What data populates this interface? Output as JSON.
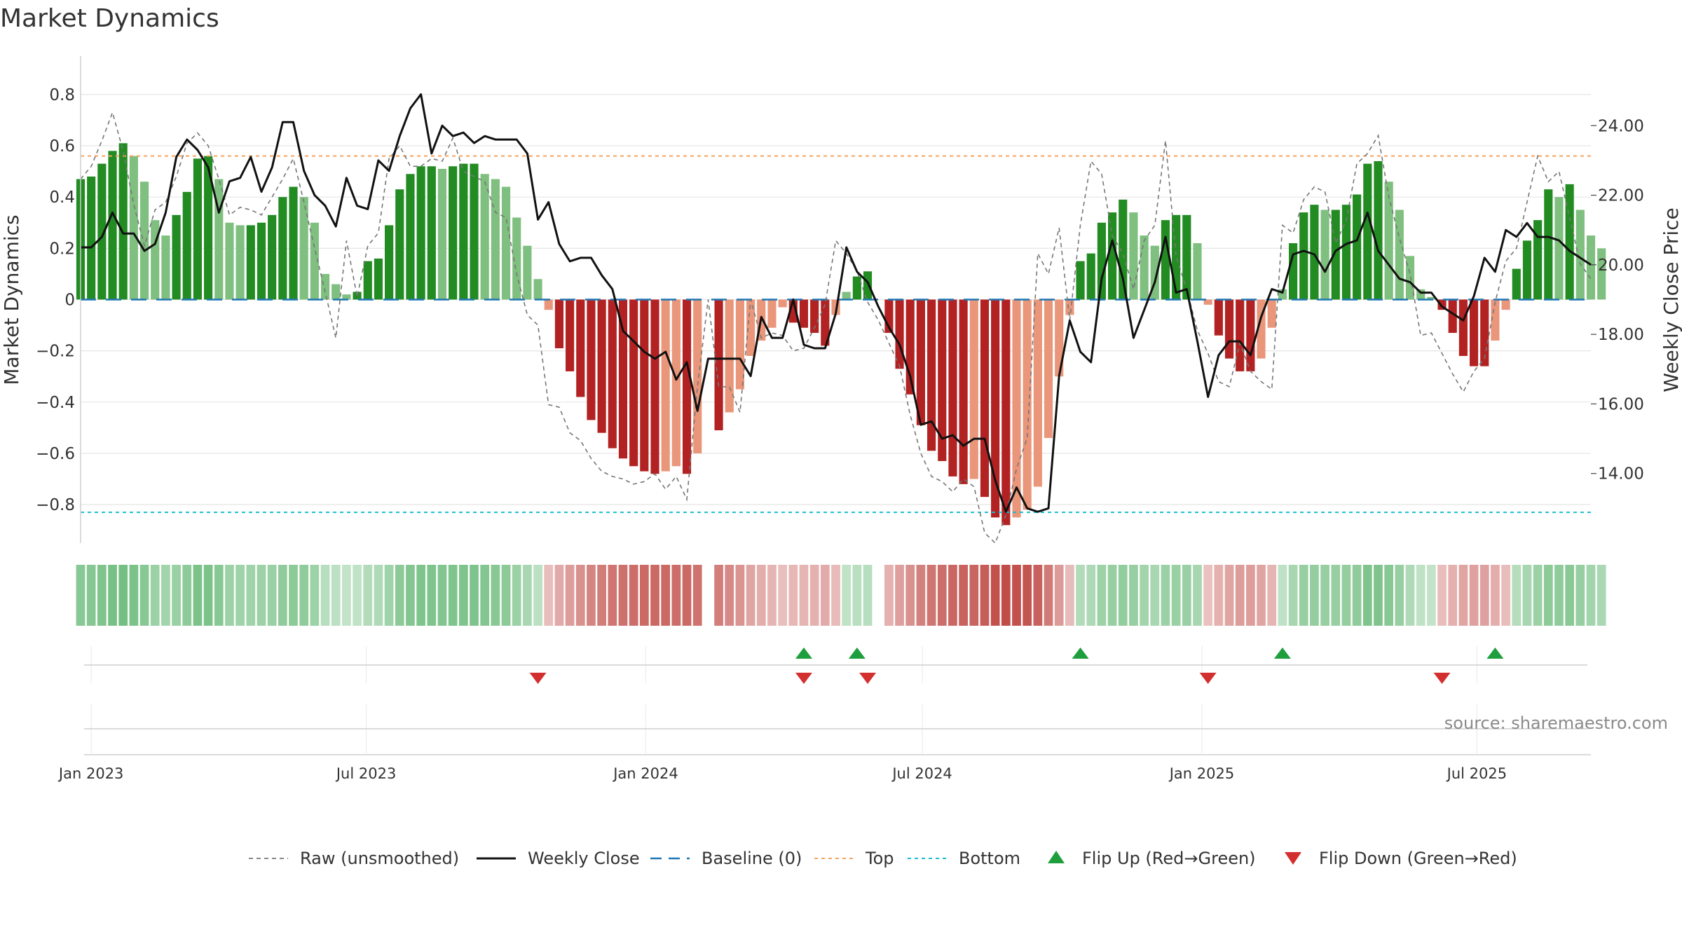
{
  "chart_data": {
    "type": "bar",
    "title": "Market Dynamics",
    "ylabel_left": "Market Dynamics",
    "ylabel_right": "Weekly Close Price",
    "source": "source: sharemaestro.com",
    "x_start": "2022-12-25",
    "x_end": "2025-09-14",
    "weeks": 143,
    "ylim_left": [
      -0.95,
      0.95
    ],
    "ylim_right": [
      12.0,
      26.0
    ],
    "left_ticks": [
      {
        "value": 0.8,
        "label": "0.8"
      },
      {
        "value": 0.6,
        "label": "0.6"
      },
      {
        "value": 0.4,
        "label": "0.4"
      },
      {
        "value": 0.2,
        "label": "0.2"
      },
      {
        "value": 0,
        "label": "0"
      },
      {
        "value": -0.2,
        "label": "−0.2"
      },
      {
        "value": -0.4,
        "label": "−0.4"
      },
      {
        "value": -0.6,
        "label": "−0.6"
      },
      {
        "value": -0.8,
        "label": "−0.8"
      }
    ],
    "right_ticks": [
      {
        "value": 24,
        "label": "24.00"
      },
      {
        "value": 22,
        "label": "22.00"
      },
      {
        "value": 20,
        "label": "20.00"
      },
      {
        "value": 18,
        "label": "18.00"
      },
      {
        "value": 16,
        "label": "16.00"
      },
      {
        "value": 14,
        "label": "14.00"
      }
    ],
    "x_ticks": [
      {
        "date": "2023-01-01",
        "label": "Jan 2023"
      },
      {
        "date": "2023-07-01",
        "label": "Jul 2023"
      },
      {
        "date": "2024-01-01",
        "label": "Jan 2024"
      },
      {
        "date": "2024-07-01",
        "label": "Jul 2024"
      },
      {
        "date": "2025-01-01",
        "label": "Jan 2025"
      },
      {
        "date": "2025-07-01",
        "label": "Jul 2025"
      }
    ],
    "top": 0.56,
    "bottom": -0.83,
    "baseline": 0,
    "dynamics": [
      0.47,
      0.48,
      0.53,
      0.58,
      0.61,
      0.56,
      0.46,
      0.31,
      0.25,
      0.33,
      0.42,
      0.55,
      0.56,
      0.47,
      0.3,
      0.29,
      0.29,
      0.3,
      0.33,
      0.4,
      0.44,
      0.4,
      0.3,
      0.1,
      0.06,
      0.02,
      0.03,
      0.15,
      0.16,
      0.29,
      0.43,
      0.49,
      0.52,
      0.52,
      0.51,
      0.52,
      0.53,
      0.53,
      0.49,
      0.47,
      0.44,
      0.32,
      0.21,
      0.08,
      -0.04,
      -0.19,
      -0.28,
      -0.38,
      -0.47,
      -0.52,
      -0.58,
      -0.62,
      -0.65,
      -0.67,
      -0.68,
      -0.67,
      -0.65,
      -0.68,
      -0.6,
      0,
      -0.51,
      -0.44,
      -0.35,
      -0.22,
      -0.16,
      -0.11,
      -0.03,
      -0.09,
      -0.11,
      -0.13,
      -0.18,
      -0.06,
      0.03,
      0.09,
      0.11,
      0,
      -0.13,
      -0.27,
      -0.37,
      -0.49,
      -0.59,
      -0.63,
      -0.69,
      -0.72,
      -0.7,
      -0.77,
      -0.85,
      -0.88,
      -0.85,
      -0.82,
      -0.73,
      -0.54,
      -0.3,
      -0.06,
      0.15,
      0.18,
      0.3,
      0.34,
      0.39,
      0.34,
      0.25,
      0.21,
      0.31,
      0.33,
      0.33,
      0.22,
      -0.02,
      -0.14,
      -0.23,
      -0.28,
      -0.28,
      -0.23,
      -0.11,
      0.04,
      0.22,
      0.34,
      0.37,
      0.35,
      0.35,
      0.37,
      0.41,
      0.53,
      0.54,
      0.46,
      0.35,
      0.17,
      0.04,
      0.01,
      -0.04,
      -0.13,
      -0.22,
      -0.26,
      -0.26,
      -0.16,
      -0.04,
      0.12,
      0.23,
      0.31,
      0.43,
      0.4,
      0.45,
      0.35,
      0.25,
      0.2
    ],
    "raw": [
      0.47,
      0.52,
      0.62,
      0.73,
      0.58,
      0.37,
      0.21,
      0.35,
      0.38,
      0.48,
      0.61,
      0.65,
      0.6,
      0.47,
      0.33,
      0.36,
      0.35,
      0.33,
      0.4,
      0.47,
      0.55,
      0.38,
      0.2,
      0.03,
      -0.15,
      0.23,
      0.01,
      0.21,
      0.26,
      0.55,
      0.6,
      0.52,
      0.52,
      0.55,
      0.54,
      0.63,
      0.5,
      0.48,
      0.46,
      0.34,
      0.32,
      0.1,
      -0.06,
      -0.1,
      -0.41,
      -0.42,
      -0.52,
      -0.55,
      -0.62,
      -0.67,
      -0.69,
      -0.7,
      -0.72,
      -0.71,
      -0.68,
      -0.74,
      -0.69,
      -0.78,
      -0.34,
      0,
      -0.34,
      -0.34,
      -0.44,
      0.0,
      -0.15,
      -0.13,
      -0.14,
      -0.2,
      -0.19,
      -0.11,
      -0.02,
      0.23,
      0.18,
      0.11,
      -0.01,
      -0.08,
      -0.17,
      -0.26,
      -0.45,
      -0.6,
      -0.69,
      -0.71,
      -0.75,
      -0.7,
      -0.73,
      -0.91,
      -0.95,
      -0.84,
      -0.66,
      -0.54,
      0.18,
      0.1,
      0.28,
      -0.08,
      0.29,
      0.54,
      0.49,
      0.25,
      0.18,
      0.04,
      0.23,
      0.29,
      0.62,
      0.17,
      0.04,
      -0.12,
      -0.21,
      -0.32,
      -0.34,
      -0.17,
      -0.28,
      -0.32,
      -0.35,
      0.29,
      0.26,
      0.39,
      0.44,
      0.42,
      0.22,
      0.31,
      0.53,
      0.57,
      0.64,
      0.4,
      0.24,
      0.1,
      -0.14,
      -0.13,
      -0.21,
      -0.29,
      -0.36,
      -0.28,
      -0.23,
      -0.01,
      0.15,
      0.2,
      0.38,
      0.56,
      0.46,
      0.5,
      0.32,
      0.14,
      0.08
    ],
    "close": [
      20.5,
      20.5,
      20.8,
      21.5,
      20.9,
      20.9,
      20.4,
      20.6,
      21.5,
      23.1,
      23.6,
      23.3,
      22.8,
      21.5,
      22.4,
      22.5,
      23.1,
      22.1,
      22.8,
      24.1,
      24.1,
      22.7,
      22.0,
      21.7,
      21.1,
      22.5,
      21.7,
      21.6,
      23.0,
      22.7,
      23.7,
      24.5,
      24.9,
      23.2,
      24.0,
      23.7,
      23.8,
      23.5,
      23.7,
      23.6,
      23.6,
      23.6,
      23.2,
      21.3,
      21.8,
      20.6,
      20.1,
      20.2,
      20.2,
      19.7,
      19.3,
      18.1,
      17.8,
      17.5,
      17.3,
      17.5,
      16.7,
      17.2,
      15.8,
      17.3,
      17.3,
      17.3,
      17.3,
      16.8,
      18.5,
      17.9,
      17.9,
      19.0,
      17.7,
      17.6,
      17.6,
      18.6,
      20.5,
      19.8,
      19.5,
      18.8,
      18.2,
      17.7,
      16.8,
      15.4,
      15.5,
      15.0,
      15.1,
      14.8,
      15.0,
      15.0,
      13.8,
      12.9,
      13.6,
      13.0,
      12.9,
      13.0,
      16.8,
      18.4,
      17.5,
      17.2,
      19.6,
      20.7,
      19.6,
      17.9,
      18.7,
      19.5,
      20.8,
      19.2,
      19.3,
      17.8,
      16.2,
      17.4,
      17.8,
      17.8,
      17.4,
      18.5,
      19.3,
      19.2,
      20.3,
      20.4,
      20.3,
      19.8,
      20.4,
      20.6,
      20.7,
      21.5,
      20.4,
      20.0,
      19.6,
      19.5,
      19.2,
      19.2,
      18.8,
      18.6,
      18.4,
      19.1,
      20.2,
      19.8,
      21.0,
      20.8,
      21.2,
      20.8,
      20.8,
      20.7,
      20.4,
      20.2,
      20.0
    ],
    "flip_up": [
      "2024-04-14",
      "2024-05-19",
      "2024-10-13",
      "2025-02-23",
      "2025-07-13"
    ],
    "flip_down": [
      "2023-10-22",
      "2024-04-14",
      "2024-05-26",
      "2025-01-05",
      "2025-06-08"
    ],
    "legend": [
      {
        "label": "Raw (unsmoothed)",
        "style": "dashed-gray"
      },
      {
        "label": "Weekly Close",
        "style": "solid-black"
      },
      {
        "label": "Baseline (0)",
        "style": "dashed-blue"
      },
      {
        "label": "Top",
        "style": "dotted-orange"
      },
      {
        "label": "Bottom",
        "style": "dotted-cyan"
      },
      {
        "label": "Flip Up (Red→Green)",
        "style": "triangle-up-green"
      },
      {
        "label": "Flip Down (Green→Red)",
        "style": "triangle-down-red"
      }
    ],
    "legend_position": "bottom-center",
    "grid": true,
    "colors": {
      "pos_strong": "#228b22",
      "pos_weak": "#7fbf7f",
      "neg_strong": "#b22222",
      "neg_weak": "#e9967a",
      "raw": "#777777",
      "close": "#111111",
      "baseline": "#1f77b4",
      "top": "#f4a460",
      "bottom": "#17becf",
      "flip_up": "#1e9e3c",
      "flip_down": "#d32f2f"
    }
  }
}
